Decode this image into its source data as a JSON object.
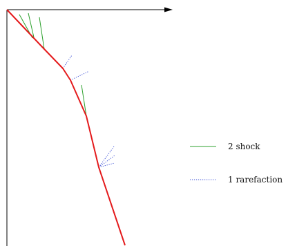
{
  "colors": {
    "axis": "#000000",
    "path": "#e41a1c",
    "shock": "#2ca02c",
    "rarefaction": "#3b4fd6"
  },
  "legend": {
    "shock_label": "2 shock",
    "rarefaction_label": "1 rarefaction"
  }
}
